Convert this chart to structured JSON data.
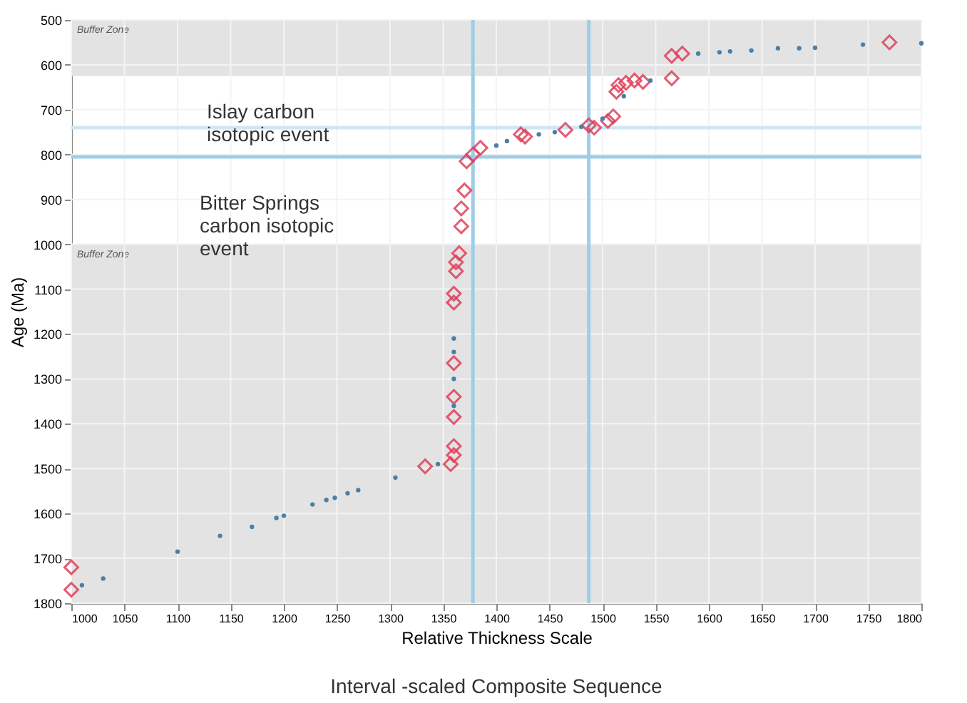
{
  "chart_data": {
    "type": "scatter",
    "xlabel": "Relative Thickness Scale",
    "ylabel": "Age (Ma)",
    "xlim": [
      1000,
      1800
    ],
    "xticks": [
      1000,
      1050,
      1100,
      1150,
      1200,
      1250,
      1300,
      1350,
      1400,
      1450,
      1500,
      1550,
      1600,
      1650,
      1700,
      1750,
      1800
    ],
    "ylim": [
      1800,
      500
    ],
    "yticks": [
      500,
      600,
      700,
      800,
      900,
      1000,
      1100,
      1200,
      1300,
      1400,
      1500,
      1600,
      1700,
      1800
    ],
    "grid": true,
    "series": [
      {
        "color": "#e0405a",
        "marker": "diamond",
        "x": [
          1000,
          1000,
          1333,
          1357,
          1360,
          1360,
          1360,
          1360,
          1360,
          1360,
          1360,
          1362,
          1362,
          1365,
          1367,
          1367,
          1370,
          1372,
          1378,
          1385,
          1423,
          1427,
          1465,
          1487,
          1492,
          1505,
          1510,
          1513,
          1515,
          1522,
          1530,
          1538,
          1565,
          1565,
          1575,
          1770
        ],
        "values": [
          1720,
          1770,
          1495,
          1490,
          1470,
          1450,
          1385,
          1340,
          1265,
          1130,
          1110,
          1060,
          1040,
          1020,
          960,
          920,
          880,
          815,
          800,
          785,
          755,
          760,
          745,
          735,
          740,
          725,
          715,
          660,
          645,
          640,
          635,
          638,
          630,
          580,
          575,
          550
        ]
      },
      {
        "color": "#4a7fa8",
        "marker": "circle",
        "x": [
          1010,
          1030,
          1100,
          1140,
          1170,
          1193,
          1200,
          1227,
          1240,
          1248,
          1260,
          1270,
          1305,
          1345,
          1360,
          1360,
          1360,
          1360,
          1400,
          1410,
          1440,
          1455,
          1480,
          1500,
          1520,
          1545,
          1590,
          1610,
          1620,
          1640,
          1665,
          1685,
          1700,
          1745,
          1800
        ],
        "values": [
          1760,
          1745,
          1685,
          1650,
          1630,
          1610,
          1605,
          1580,
          1570,
          1565,
          1555,
          1548,
          1520,
          1490,
          1210,
          1240,
          1300,
          1360,
          780,
          770,
          755,
          750,
          738,
          720,
          670,
          635,
          575,
          572,
          570,
          568,
          563,
          563,
          562,
          555,
          552
        ]
      }
    ],
    "bands": [
      {
        "axis": "y",
        "from": 500,
        "to": 625,
        "label": "Buffer Zone",
        "color": "#e3e3e3"
      },
      {
        "axis": "y",
        "from": 1000,
        "to": 1800,
        "label": "Buffer Zone",
        "color": "#e3e3e3"
      }
    ],
    "ref_lines": [
      {
        "axis": "y",
        "value": 740,
        "color": "#cfe6f4"
      },
      {
        "axis": "y",
        "value": 805,
        "color": "#9fcde8"
      },
      {
        "axis": "x",
        "value": 1378,
        "color": "#9fcde8"
      },
      {
        "axis": "x",
        "value": 1487,
        "color": "#9fcde8"
      }
    ],
    "annotations": [
      "Islay carbon\nisotopic event",
      "Bitter Springs\ncarbon isotopic\nevent",
      "Interval -scaled Composite Sequence"
    ]
  }
}
